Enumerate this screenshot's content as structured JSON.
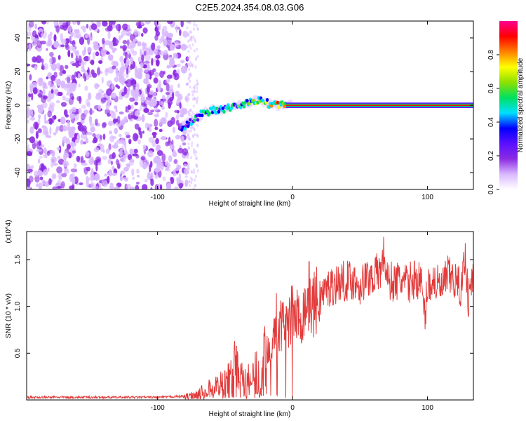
{
  "title": "C2E5.2024.354.08.03.G06",
  "chart_data": [
    {
      "type": "heatmap",
      "xlabel": "Height of straight line (km)",
      "ylabel": "Frequency (Hz)",
      "xlim": [
        -197,
        134
      ],
      "ylim": [
        -50,
        50
      ],
      "xticks": [
        -100,
        0,
        100
      ],
      "yticks": [
        -40,
        -20,
        0,
        20,
        40
      ],
      "colorbar": {
        "label": "Normalized spectral amplitude",
        "range": [
          0,
          1
        ],
        "ticks": [
          "0.0",
          "0.2",
          "0.4",
          "0.6",
          "0.8"
        ],
        "colors": [
          "#ffffff",
          "#d9b8ff",
          "#8c2be2",
          "#5a10ff",
          "#0000ff",
          "#00e0ff",
          "#00e060",
          "#8ee000",
          "#ffff00",
          "#ff8000",
          "#ff0000",
          "#ff0090"
        ]
      },
      "signal_track": [
        {
          "x": -82,
          "y": -13,
          "a": 0.35
        },
        {
          "x": -75,
          "y": -10,
          "a": 0.4
        },
        {
          "x": -67,
          "y": -5,
          "a": 0.45
        },
        {
          "x": -60,
          "y": -3,
          "a": 0.45
        },
        {
          "x": -50,
          "y": -2,
          "a": 0.5
        },
        {
          "x": -40,
          "y": 0,
          "a": 0.5
        },
        {
          "x": -32,
          "y": 2,
          "a": 0.55
        },
        {
          "x": -25,
          "y": 3,
          "a": 0.55
        },
        {
          "x": -18,
          "y": 1,
          "a": 0.6
        },
        {
          "x": -10,
          "y": 0,
          "a": 0.7
        },
        {
          "x": 0,
          "y": 0,
          "a": 0.85
        },
        {
          "x": 20,
          "y": 0,
          "a": 0.9
        },
        {
          "x": 60,
          "y": 0,
          "a": 0.9
        },
        {
          "x": 100,
          "y": 0,
          "a": 0.9
        },
        {
          "x": 134,
          "y": 0,
          "a": 0.9
        }
      ],
      "noise_region_x": [
        -197,
        -78
      ]
    },
    {
      "type": "line",
      "xlabel": "Height of straight line (km)",
      "ylabel": "SNR (10 * v/v)",
      "multiplier": "(x10^4)",
      "xlim": [
        -197,
        134
      ],
      "ylim": [
        0,
        1.8
      ],
      "xticks": [
        -100,
        0,
        100
      ],
      "yticks": [
        0.5,
        1.0,
        1.5
      ],
      "color": "#e23b3b",
      "series": [
        {
          "x": [
            -197,
            -180,
            -160,
            -140,
            -120,
            -100,
            -90,
            -80,
            -75,
            -70,
            -65,
            -60,
            -55,
            -50,
            -45,
            -42,
            -40,
            -35,
            -30,
            -28,
            -25,
            -22,
            -20,
            -18,
            -15,
            -12,
            -10,
            -5,
            0,
            5,
            10,
            12,
            15,
            20,
            25,
            30,
            35,
            40,
            45,
            50,
            55,
            60,
            65,
            68,
            70,
            75,
            80,
            85,
            90,
            95,
            98,
            100,
            105,
            110,
            115,
            120,
            125,
            128,
            130,
            134
          ],
          "y": [
            0.03,
            0.03,
            0.03,
            0.03,
            0.03,
            0.03,
            0.035,
            0.04,
            0.05,
            0.07,
            0.1,
            0.13,
            0.17,
            0.2,
            0.28,
            0.38,
            0.3,
            0.25,
            0.2,
            0.28,
            0.32,
            0.45,
            0.55,
            0.6,
            0.65,
            0.9,
            0.8,
            0.85,
            0.95,
            0.9,
            1.05,
            1.15,
            1.05,
            1.12,
            1.2,
            1.25,
            1.28,
            1.3,
            1.3,
            1.25,
            1.32,
            1.35,
            1.4,
            1.6,
            1.3,
            1.28,
            1.3,
            1.25,
            1.32,
            1.3,
            0.9,
            1.25,
            1.3,
            1.2,
            1.35,
            1.3,
            1.2,
            1.6,
            1.1,
            1.35
          ]
        }
      ]
    }
  ]
}
